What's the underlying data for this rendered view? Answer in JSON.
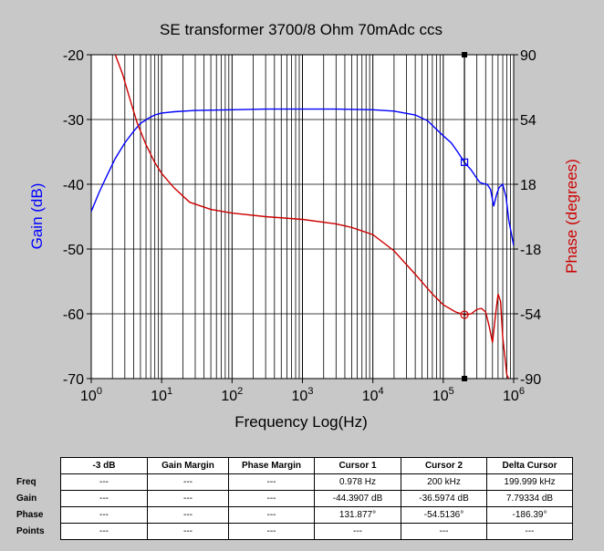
{
  "chart_data": {
    "type": "line",
    "title": "SE transformer 3700/8 Ohm 70mAdc ccs",
    "xlabel": "Frequency Log(Hz)",
    "ylabel_left": "Gain (dB)",
    "ylabel_right": "Phase (degrees)",
    "x_scale": "log",
    "xlim": [
      1,
      1000000
    ],
    "ylim_left": [
      -70,
      -20
    ],
    "ylim_right": [
      -90,
      90
    ],
    "x_ticks": [
      1,
      10,
      100,
      1000,
      10000,
      100000,
      1000000
    ],
    "y_ticks_left": [
      "-20",
      "-30",
      "-40",
      "-50",
      "-60",
      "-70"
    ],
    "y_ticks_right": [
      "90",
      "54",
      "18",
      "-18",
      "-54",
      "-90"
    ],
    "grid": true,
    "colors": {
      "gain": "#0000ff",
      "phase": "#cc0000"
    },
    "series": [
      {
        "axis": "left",
        "x": [
          1,
          1.3,
          1.7,
          2.2,
          3,
          4,
          5,
          6.5,
          8,
          10,
          15,
          30,
          100,
          300,
          1000,
          3000,
          10000,
          20000,
          40000,
          60000,
          80000,
          100000,
          130000,
          160000,
          200000,
          250000,
          300000,
          330000,
          370000,
          420000,
          470000,
          520000,
          570000,
          620000,
          700000,
          780000,
          850000,
          1000000
        ],
        "y": [
          -44.2,
          -41.2,
          -38.5,
          -36,
          -33.6,
          -31.8,
          -30.6,
          -29.8,
          -29.3,
          -29,
          -28.8,
          -28.6,
          -28.5,
          -28.4,
          -28.4,
          -28.4,
          -28.5,
          -28.7,
          -29.3,
          -30.2,
          -31.5,
          -32.5,
          -33.6,
          -35,
          -36.6,
          -37.8,
          -39.1,
          -39.7,
          -39.9,
          -40,
          -40.8,
          -43.4,
          -41.6,
          -40.5,
          -40,
          -42,
          -45.5,
          -49.5
        ]
      },
      {
        "axis": "right",
        "x": [
          2.2,
          2.8,
          3.5,
          4.5,
          6,
          8,
          10,
          15,
          25,
          50,
          100,
          300,
          1000,
          3000,
          5000,
          10000,
          20000,
          40000,
          70000,
          100000,
          150000,
          200000,
          250000,
          300000,
          350000,
          400000,
          450000,
          500000,
          550000,
          600000,
          650000,
          700000,
          750000,
          800000,
          850000
        ],
        "y": [
          90,
          79,
          66,
          52,
          40,
          30,
          24,
          16,
          8,
          4,
          2,
          0,
          -1.5,
          -4,
          -6,
          -10,
          -19,
          -32,
          -43,
          -49,
          -53,
          -54.5,
          -54,
          -51.5,
          -51,
          -53,
          -61,
          -70,
          -55,
          -43,
          -47,
          -67,
          -78,
          -88,
          -90
        ]
      }
    ],
    "cursors": [
      {
        "label": "Cursor 2",
        "x": 200000,
        "gain": -36.5974,
        "phase": -54.5136
      }
    ]
  },
  "table": {
    "headers": [
      "",
      "-3 dB",
      "Gain Margin",
      "Phase Margin",
      "Cursor 1",
      "Cursor 2",
      "Delta Cursor"
    ],
    "rows": [
      {
        "label": "Freq",
        "cells": [
          "---",
          "---",
          "---",
          "0.978 Hz",
          "200 kHz",
          "199.999 kHz"
        ]
      },
      {
        "label": "Gain",
        "cells": [
          "---",
          "---",
          "---",
          "-44.3907 dB",
          "-36.5974 dB",
          "7.79334 dB"
        ]
      },
      {
        "label": "Phase",
        "cells": [
          "---",
          "---",
          "---",
          "131.877°",
          "-54.5136°",
          "-186.39°"
        ]
      },
      {
        "label": "Points",
        "cells": [
          "---",
          "---",
          "---",
          "---",
          "---",
          "---"
        ]
      }
    ]
  }
}
